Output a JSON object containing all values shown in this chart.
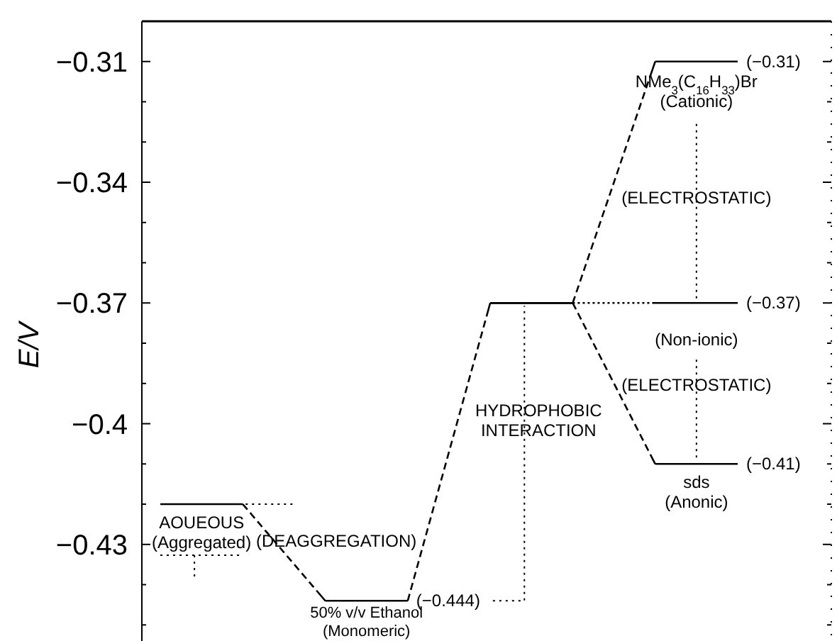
{
  "chart_data": {
    "type": "line",
    "ylabel": "E/V",
    "categories": [
      null,
      null,
      null,
      null,
      null,
      null,
      null,
      null
    ],
    "ylim": [
      -0.454,
      -0.3
    ],
    "yticks": [
      {
        "value": -0.3,
        "label": null
      },
      -0.31,
      {
        "value": -0.32,
        "label": null
      },
      {
        "value": -0.33,
        "label": null
      },
      -0.34,
      {
        "value": -0.35,
        "label": null
      },
      {
        "value": -0.36,
        "label": null
      },
      -0.37,
      {
        "value": -0.38,
        "label": null
      },
      {
        "value": -0.39,
        "label": null
      },
      -0.4,
      {
        "value": -0.41,
        "label": null
      },
      {
        "value": -0.42,
        "label": null
      },
      -0.43,
      {
        "value": -0.44,
        "label": null
      },
      {
        "value": -0.45,
        "label": null
      }
    ],
    "tick_labels": "y",
    "grid": false,
    "series": [
      {
        "color": "#000000",
        "line_style": "dashed",
        "values": [
          -0.42,
          -0.42,
          -0.444,
          -0.444,
          -0.37,
          -0.37,
          -0.31,
          -0.31
        ],
        "value_labels": [
          null,
          null,
          null,
          "(−0.444)",
          null,
          null,
          null,
          "(−0.31)"
        ]
      },
      {
        "color": "#000000",
        "line_style": "dashed",
        "values": [
          null,
          null,
          null,
          null,
          -0.37,
          -0.37,
          -0.41,
          -0.41
        ],
        "value_labels": [
          null,
          null,
          null,
          null,
          null,
          null,
          null,
          "(−0.41)"
        ]
      },
      {
        "color": "#000000",
        "line_style": "dotted",
        "values": [
          null,
          null,
          null,
          null,
          -0.37,
          -0.37,
          -0.37,
          -0.37
        ],
        "value_labels": [
          null,
          null,
          null,
          null,
          null,
          null,
          null,
          "(−0.37)"
        ]
      }
    ],
    "annotations": [
      "AOUEOUS\n(Aggregated)",
      "(DEAGGREGATION)",
      "50% v/v Ethanol\n(Monomeric)",
      "HYDROPHOBIC\nINTERACTION",
      "NMe$_{3}$(C$_{16}$H$_{33}$)Br\n(Cationic)",
      "(ELECTROSTATIC)",
      "(Non-ionic)",
      "(ELECTROSTATIC)",
      "sds\n(Anonic)"
    ]
  }
}
